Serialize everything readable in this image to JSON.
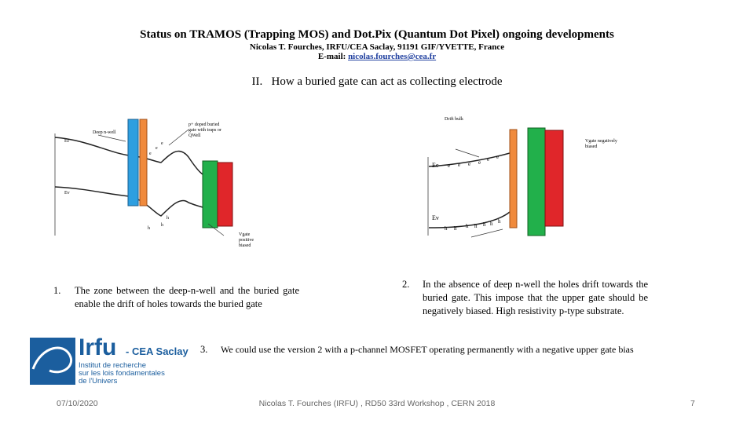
{
  "header": {
    "title": "Status on TRAMOS (Trapping MOS) and Dot.Pix (Quantum Dot Pixel) ongoing developments",
    "authors": "Nicolas T. Fourches, IRFU/CEA Saclay, 91191 GIF/YVETTE, France",
    "email_label": "E-mail:",
    "email": "nicolas.fourches@cea.fr"
  },
  "section": {
    "number": "II.",
    "title": "How a buried gate can act as collecting electrode"
  },
  "diagram_1": {
    "deep_n_well": "Deep n-well",
    "buried_gate": [
      "p+ doped buried",
      "gate with traps or",
      "QWell"
    ],
    "ec": "Ec",
    "ev": "Ev",
    "vgate": [
      "Vgate",
      "positive",
      "biased"
    ],
    "electron": "e",
    "hole": "h"
  },
  "diagram_2": {
    "drift_bulk": "Drift bulk",
    "vgate": [
      "Vgate negatively",
      "biased"
    ],
    "ec": "Ec",
    "ev": "Ev",
    "electron": "e",
    "hole": "h"
  },
  "items": [
    {
      "number": "1.",
      "text": "The zone between the deep-n-well and the buried gate enable the drift of holes towards the buried gate"
    },
    {
      "number": "2.",
      "text": "In the absence of deep n-well the holes drift towards the buried gate. This impose that the upper gate should be negatively biased. High resistivity p-type substrate."
    },
    {
      "number": "3.",
      "text": "We could use the version 2 with a p-channel MOSFET operating permanently with a negative upper gate bias"
    }
  ],
  "logo": {
    "name": "Irfu",
    "site": "- CEA Saclay",
    "lines": [
      "Institut de recherche",
      "sur les lois fondamentales",
      "de l'Univers"
    ]
  },
  "footer": {
    "date": "07/10/2020",
    "center": "Nicolas T. Fourches (IRFU) , RD50 33rd Workshop , CERN 2018",
    "page": "7"
  }
}
